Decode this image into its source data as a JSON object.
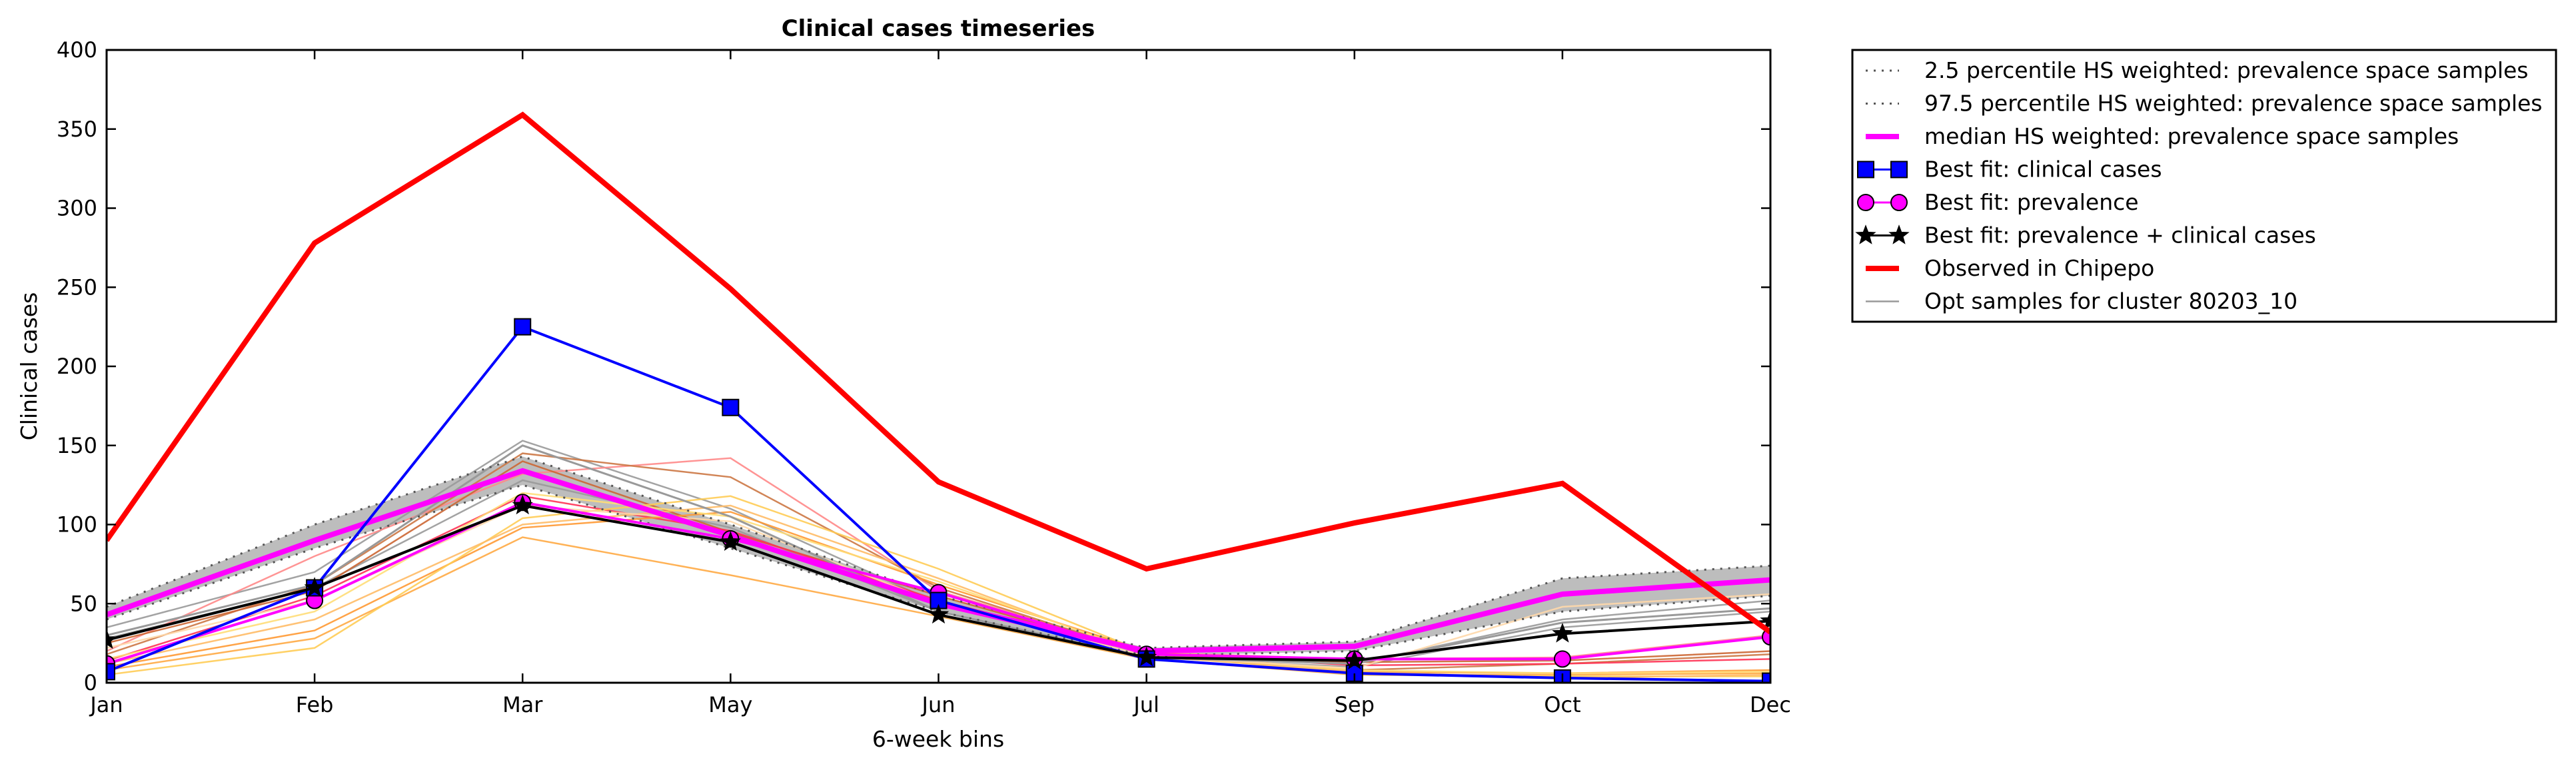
{
  "chart_data": {
    "type": "line",
    "title": "Clinical cases timeseries",
    "xlabel": "6-week bins",
    "ylabel": "Clinical cases",
    "categories": [
      "Jan",
      "Feb",
      "Mar",
      "May",
      "Jun",
      "Jul",
      "Sep",
      "Oct",
      "Dec"
    ],
    "yticks": [
      0,
      50,
      100,
      150,
      200,
      250,
      300,
      350,
      400
    ],
    "ylim": [
      0,
      400
    ],
    "grid": false,
    "legend_position": "outside-top-right",
    "band": {
      "lower": [
        40,
        85,
        125,
        85,
        45,
        17,
        20,
        45,
        55
      ],
      "upper": [
        48,
        100,
        143,
        100,
        55,
        22,
        26,
        66,
        74
      ],
      "color": "#bdbdbd"
    },
    "series": [
      {
        "name": "2.5 percentile HS weighted: prevalence space samples",
        "style": "dotted",
        "color": "#555555",
        "values": [
          40,
          85,
          125,
          85,
          45,
          17,
          20,
          45,
          55
        ]
      },
      {
        "name": "97.5 percentile HS weighted: prevalence space samples",
        "style": "dotted",
        "color": "#555555",
        "values": [
          48,
          100,
          143,
          100,
          55,
          22,
          26,
          66,
          74
        ]
      },
      {
        "name": "median HS weighted: prevalence space samples",
        "style": "solid",
        "color": "#ff00ff",
        "values": [
          43,
          90,
          134,
          93,
          50,
          20,
          23,
          56,
          65
        ]
      },
      {
        "name": "Best fit: clinical cases",
        "style": "solid",
        "color": "#0000ff",
        "marker": "square",
        "values": [
          7,
          60,
          225,
          174,
          52,
          15,
          6,
          3,
          1
        ]
      },
      {
        "name": "Best fit: prevalence",
        "style": "solid",
        "color": "#ff00ff",
        "marker": "circle",
        "values": [
          12,
          52,
          114,
          91,
          57,
          18,
          15,
          15,
          29
        ]
      },
      {
        "name": "Best fit: prevalence + clinical cases",
        "style": "solid",
        "color": "#000000",
        "marker": "star",
        "values": [
          27,
          60,
          112,
          89,
          43,
          16,
          14,
          31,
          39
        ]
      },
      {
        "name": "Observed in Chipepo",
        "style": "solid",
        "color": "#ff0000",
        "values": [
          90,
          278,
          359,
          249,
          127,
          72,
          101,
          126,
          32
        ]
      },
      {
        "name": "Opt samples for cluster 80203_10",
        "style": "solid",
        "color": "#999999",
        "values": [
          30,
          62,
          150,
          105,
          45,
          16,
          12,
          38,
          47
        ]
      }
    ],
    "samples": [
      {
        "color": "#999999",
        "values": [
          35,
          70,
          153,
          110,
          50,
          17,
          12,
          40,
          52
        ]
      },
      {
        "color": "#999999",
        "values": [
          28,
          60,
          128,
          98,
          45,
          16,
          10,
          35,
          45
        ]
      },
      {
        "color": "#ff8888",
        "values": [
          20,
          80,
          132,
          142,
          58,
          19,
          15,
          16,
          30
        ]
      },
      {
        "color": "#cc7744",
        "values": [
          18,
          62,
          145,
          130,
          60,
          18,
          8,
          12,
          18
        ]
      },
      {
        "color": "#cc6633",
        "values": [
          25,
          58,
          140,
          95,
          55,
          18,
          13,
          14,
          20
        ]
      },
      {
        "color": "#ff3355",
        "values": [
          14,
          55,
          118,
          96,
          52,
          19,
          11,
          12,
          15
        ]
      },
      {
        "color": "#ff9933",
        "values": [
          10,
          33,
          98,
          108,
          62,
          20,
          7,
          6,
          8
        ]
      },
      {
        "color": "#ffaa44",
        "values": [
          8,
          28,
          92,
          68,
          42,
          15,
          5,
          5,
          6
        ]
      },
      {
        "color": "#ffcc55",
        "values": [
          5,
          22,
          104,
          118,
          72,
          19,
          5,
          4,
          4
        ]
      },
      {
        "color": "#ffbb66",
        "values": [
          12,
          40,
          100,
          112,
          66,
          17,
          7,
          3,
          5
        ]
      },
      {
        "color": "#ffdd77",
        "values": [
          15,
          45,
          120,
          105,
          64,
          18,
          8,
          6,
          7
        ]
      },
      {
        "color": "#ffd8aa",
        "values": [
          22,
          52,
          112,
          102,
          50,
          17,
          9,
          48,
          56
        ]
      }
    ]
  }
}
